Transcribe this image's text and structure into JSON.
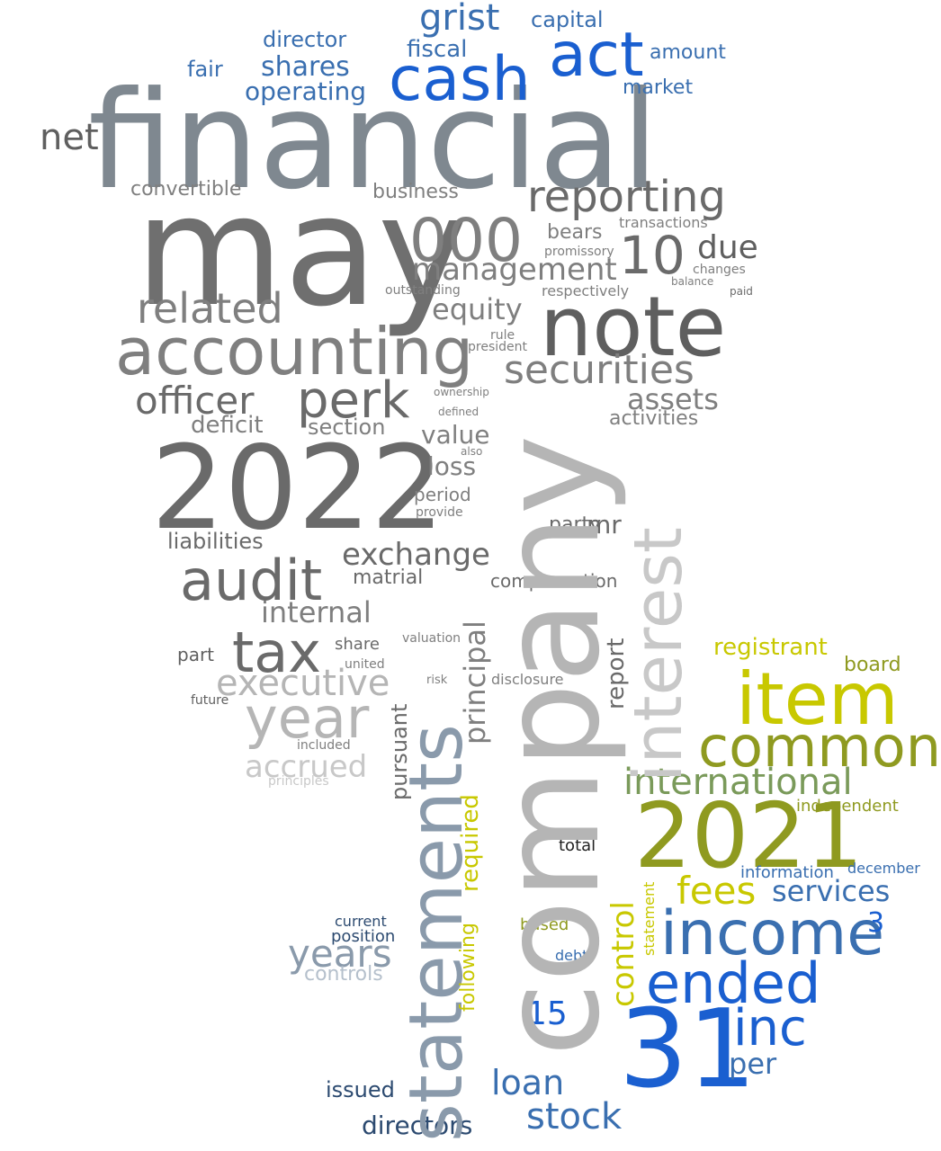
{
  "palette": {
    "dark_gray": "#5f5f5f",
    "mid_gray": "#7f8890",
    "light_gray": "#b5b5b5",
    "blue": "#1a5fd0",
    "steel_blue": "#3a6fb0",
    "navy": "#2c4a70",
    "yellow": "#c8c800",
    "olive": "#8f9a20",
    "sage": "#7a9a5a"
  },
  "words": [
    "financial",
    "may",
    "company",
    "statements",
    "note",
    "accounting",
    "2022",
    "2021",
    "31",
    "item",
    "common",
    "cash",
    "act",
    "interest",
    "income",
    "ended",
    "inc",
    "perk",
    "audit",
    "tax",
    "year",
    "reporting",
    "000",
    "10",
    "securities",
    "grist",
    "management",
    "related",
    "officer",
    "international",
    "control",
    "fees",
    "services",
    "loan",
    "stock",
    "executive",
    "years",
    "accrued",
    "exchange",
    "internal",
    "liabilities",
    "deficit",
    "section",
    "assets",
    "activities",
    "due",
    "equity",
    "shares",
    "operating",
    "net",
    "convertible",
    "business",
    "fiscal",
    "capital",
    "amount",
    "director",
    "fair",
    "market",
    "registrant",
    "principal",
    "required",
    "following",
    "statement",
    "report",
    "per",
    "15",
    "3",
    "directors",
    "issued",
    "controls",
    "position",
    "current",
    "based",
    "debt",
    "total",
    "independent",
    "information",
    "december",
    "board",
    "compensation",
    "party",
    "mr",
    "loss",
    "value",
    "period",
    "provide",
    "outstanding",
    "respectively",
    "promissory",
    "bears",
    "transactions",
    "changes",
    "balance",
    "paid",
    "rule",
    "president",
    "ownership",
    "defined",
    "also",
    "matrial",
    "pursuant",
    "principles",
    "included",
    "future",
    "part",
    "share",
    "united",
    "valuation",
    "disclosure",
    "risk"
  ]
}
